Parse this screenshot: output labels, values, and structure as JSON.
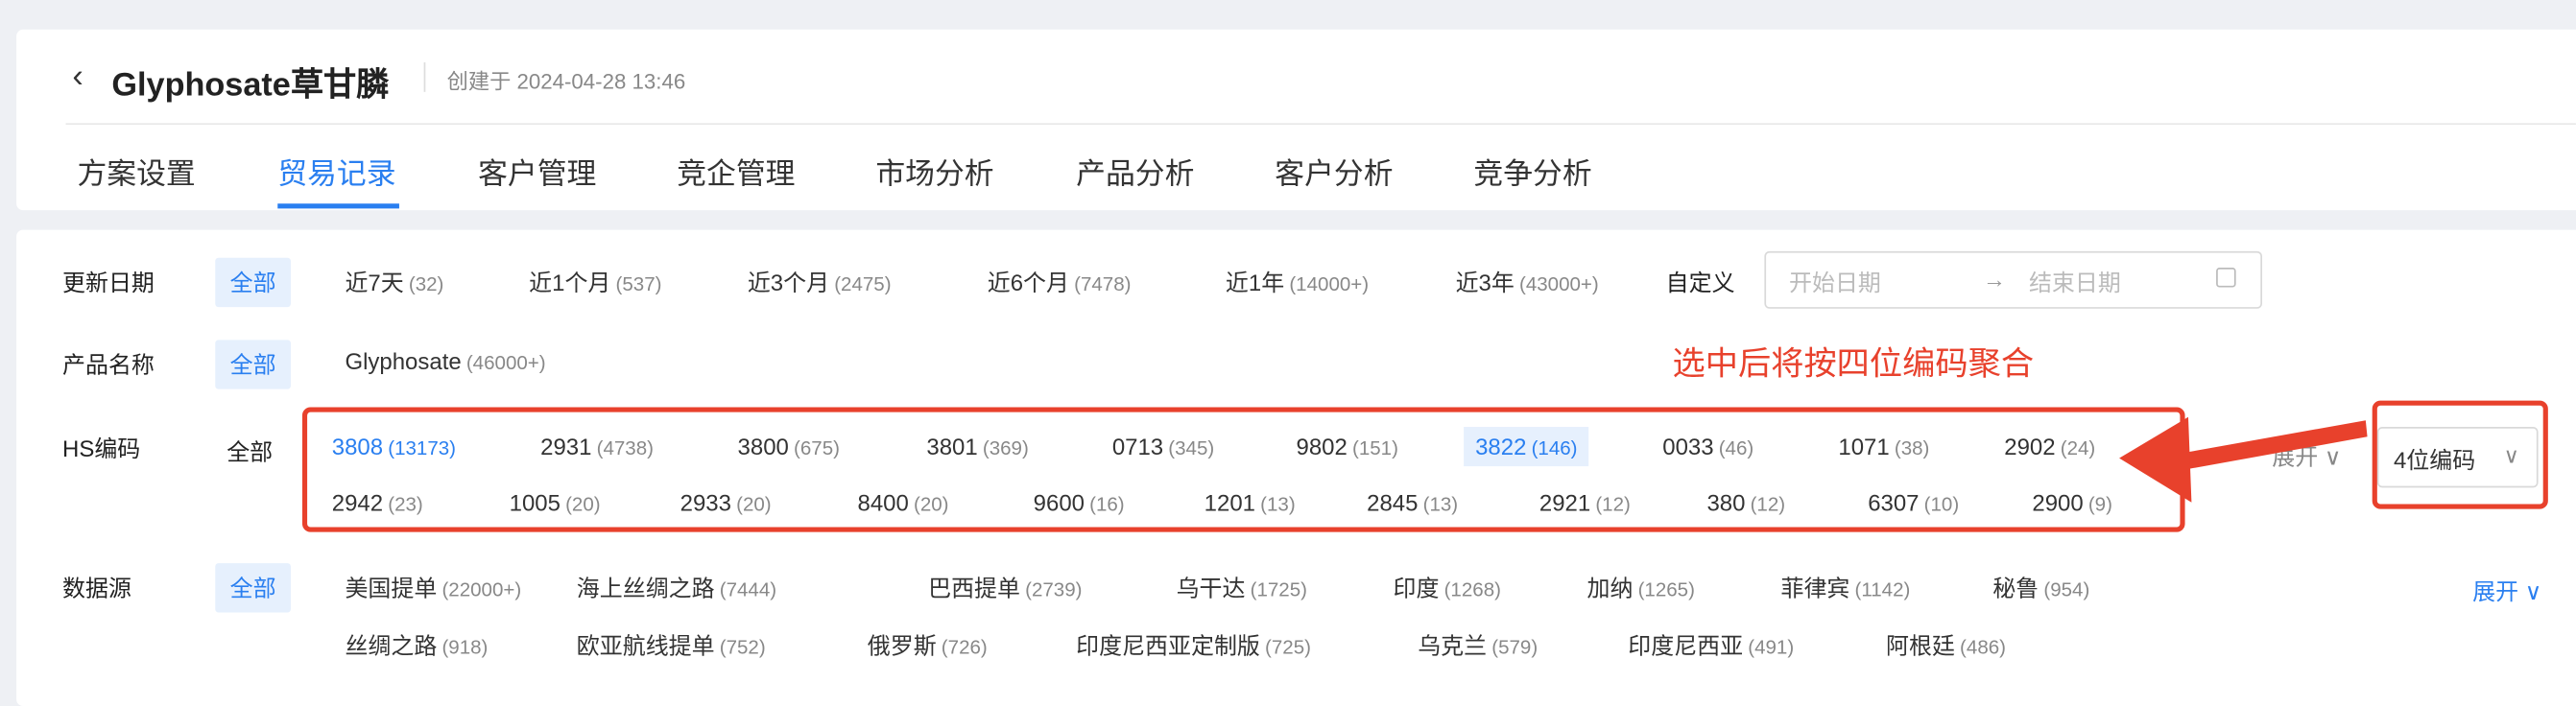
{
  "header": {
    "back_icon": "chevron-left-icon",
    "title": "Glyphosate草甘膦",
    "created": "创建于 2024-04-28 13:46",
    "tabs": [
      {
        "label": "方案设置"
      },
      {
        "label": "贸易记录",
        "active": true
      },
      {
        "label": "客户管理"
      },
      {
        "label": "竞企管理"
      },
      {
        "label": "市场分析"
      },
      {
        "label": "产品分析"
      },
      {
        "label": "客户分析"
      },
      {
        "label": "竞争分析"
      }
    ]
  },
  "filters": {
    "date": {
      "label": "更新日期",
      "all": "全部",
      "items": [
        {
          "name": "近7天",
          "count": "(32)"
        },
        {
          "name": "近1个月",
          "count": "(537)"
        },
        {
          "name": "近3个月",
          "count": "(2475)"
        },
        {
          "name": "近6个月",
          "count": "(7478)"
        },
        {
          "name": "近1年",
          "count": "(14000+)"
        },
        {
          "name": "近3年",
          "count": "(43000+)"
        }
      ],
      "custom": "自定义",
      "start_placeholder": "开始日期",
      "end_placeholder": "结束日期",
      "arrow": "→",
      "calendar_icon": "calendar-icon"
    },
    "product": {
      "label": "产品名称",
      "all": "全部",
      "items": [
        {
          "name": "Glyphosate",
          "count": "(46000+)"
        }
      ]
    },
    "hs": {
      "label": "HS编码",
      "all": "全部",
      "items": [
        {
          "name": "3808",
          "count": "(13173)",
          "selected": true
        },
        {
          "name": "2931",
          "count": "(4738)"
        },
        {
          "name": "3800",
          "count": "(675)"
        },
        {
          "name": "3801",
          "count": "(369)"
        },
        {
          "name": "0713",
          "count": "(345)"
        },
        {
          "name": "9802",
          "count": "(151)"
        },
        {
          "name": "3822",
          "count": "(146)",
          "hovered": true
        },
        {
          "name": "0033",
          "count": "(46)"
        },
        {
          "name": "1071",
          "count": "(38)"
        },
        {
          "name": "2902",
          "count": "(24)"
        },
        {
          "name": "2942",
          "count": "(23)"
        },
        {
          "name": "1005",
          "count": "(20)"
        },
        {
          "name": "2933",
          "count": "(20)"
        },
        {
          "name": "8400",
          "count": "(20)"
        },
        {
          "name": "9600",
          "count": "(16)"
        },
        {
          "name": "1201",
          "count": "(13)"
        },
        {
          "name": "2845",
          "count": "(13)"
        },
        {
          "name": "2921",
          "count": "(12)"
        },
        {
          "name": "380",
          "count": "(12)"
        },
        {
          "name": "6307",
          "count": "(10)"
        },
        {
          "name": "2900",
          "count": "(9)"
        }
      ],
      "expand": "展开 ∨",
      "select_value": "4位编码",
      "select_chevron": "∨"
    },
    "source": {
      "label": "数据源",
      "all": "全部",
      "items": [
        {
          "name": "美国提单",
          "count": "(22000+)"
        },
        {
          "name": "海上丝绸之路",
          "count": "(7444)"
        },
        {
          "name": "巴西提单",
          "count": "(2739)"
        },
        {
          "name": "乌干达",
          "count": "(1725)"
        },
        {
          "name": "印度",
          "count": "(1268)"
        },
        {
          "name": "加纳",
          "count": "(1265)"
        },
        {
          "name": "菲律宾",
          "count": "(1142)"
        },
        {
          "name": "秘鲁",
          "count": "(954)"
        },
        {
          "name": "丝绸之路",
          "count": "(918)"
        },
        {
          "name": "欧亚航线提单",
          "count": "(752)"
        },
        {
          "name": "俄罗斯",
          "count": "(726)"
        },
        {
          "name": "印度尼西亚定制版",
          "count": "(725)"
        },
        {
          "name": "乌克兰",
          "count": "(579)"
        },
        {
          "name": "印度尼西亚",
          "count": "(491)"
        },
        {
          "name": "阿根廷",
          "count": "(486)"
        }
      ],
      "expand": "展开 ∨"
    }
  },
  "annotation": {
    "text": "选中后将按四位编码聚合",
    "color": "#e8412c"
  },
  "colors": {
    "accent": "#2a7ff0",
    "annotation": "#e8412c"
  }
}
